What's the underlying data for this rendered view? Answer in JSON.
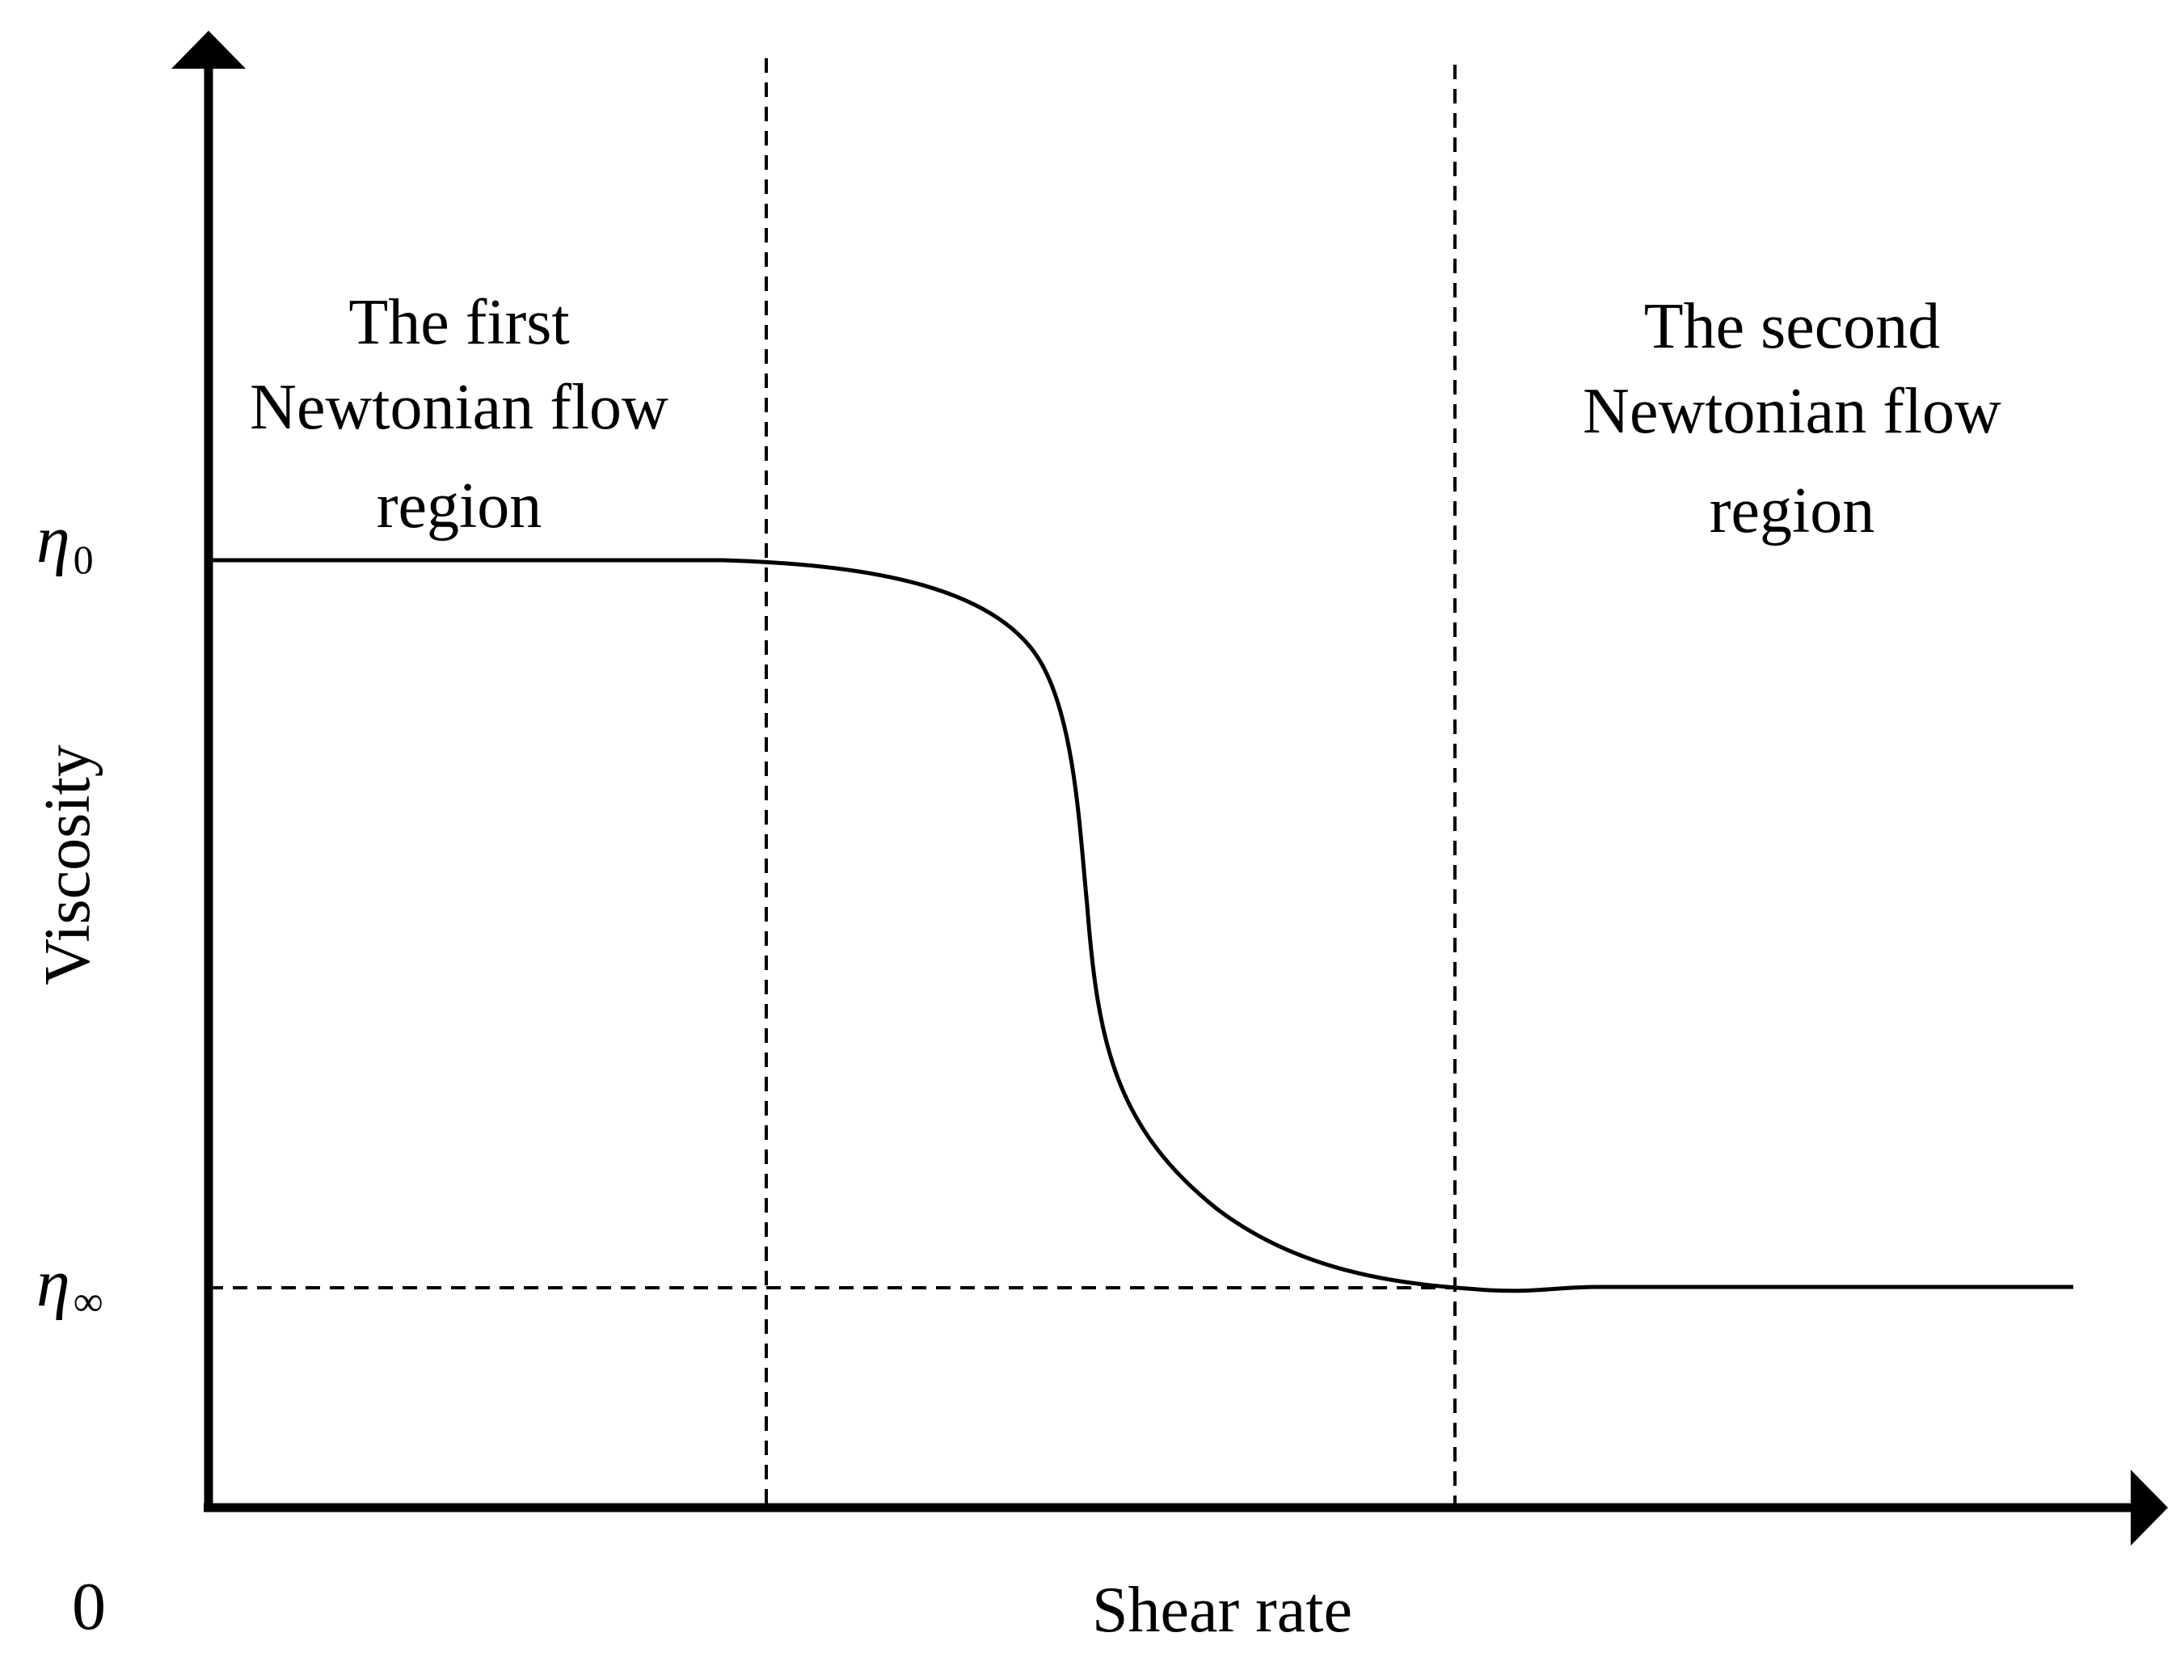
{
  "colors": {
    "line": "#000000",
    "background": "#ffffff"
  },
  "axes": {
    "x_label": "Shear rate",
    "y_label": "Viscosity",
    "origin_label": "0"
  },
  "y_ticks": {
    "eta_zero": {
      "symbol": "η",
      "subscript": "0"
    },
    "eta_inf": {
      "symbol": "η",
      "subscript": "∞"
    }
  },
  "regions": {
    "first": [
      "The first",
      "Newtonian flow",
      "region"
    ],
    "second": [
      "The second",
      "Newtonian flow",
      "region"
    ]
  },
  "curve": {
    "description_free": true,
    "shape": "sigmoid-decreasing",
    "start_level": "eta_zero",
    "end_level": "eta_inf"
  }
}
